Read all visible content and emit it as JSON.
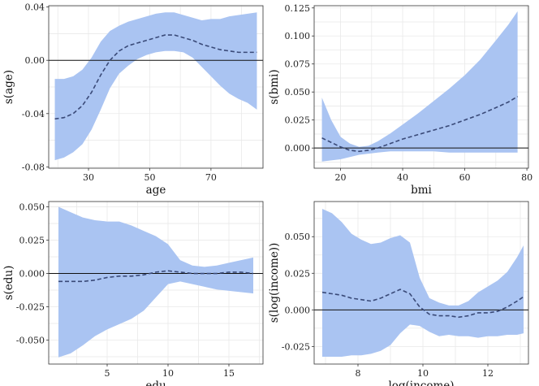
{
  "chart_data": [
    {
      "type": "area",
      "id": "age",
      "xlabel": "age",
      "ylabel": "s(age)",
      "xlim": [
        17,
        87
      ],
      "ylim": [
        -0.081,
        0.041
      ],
      "xticks": [
        30,
        50,
        70
      ],
      "xtick_labels": [
        "30",
        "50",
        "70"
      ],
      "yticks": [
        -0.08,
        -0.04,
        0.0,
        0.04
      ],
      "ytick_labels": [
        "-0.08",
        "-0.04",
        "0.00",
        "0.04"
      ],
      "x": [
        19,
        22,
        25,
        28,
        31,
        34,
        37,
        40,
        43,
        46,
        49,
        52,
        55,
        58,
        61,
        64,
        67,
        70,
        73,
        76,
        79,
        82,
        85
      ],
      "estimate": [
        -0.044,
        -0.043,
        -0.04,
        -0.034,
        -0.024,
        -0.011,
        0.0,
        0.007,
        0.011,
        0.013,
        0.015,
        0.017,
        0.019,
        0.019,
        0.017,
        0.015,
        0.012,
        0.01,
        0.008,
        0.007,
        0.006,
        0.006,
        0.006
      ],
      "lower": [
        -0.075,
        -0.073,
        -0.069,
        -0.063,
        -0.052,
        -0.037,
        -0.021,
        -0.01,
        -0.004,
        0.001,
        0.004,
        0.006,
        0.007,
        0.007,
        0.006,
        0.002,
        -0.005,
        -0.012,
        -0.019,
        -0.025,
        -0.029,
        -0.032,
        -0.037
      ],
      "upper": [
        -0.014,
        -0.014,
        -0.012,
        -0.007,
        0.002,
        0.014,
        0.022,
        0.026,
        0.029,
        0.031,
        0.033,
        0.035,
        0.036,
        0.036,
        0.034,
        0.032,
        0.03,
        0.031,
        0.031,
        0.033,
        0.034,
        0.035,
        0.036
      ]
    },
    {
      "type": "area",
      "id": "bmi",
      "xlabel": "bmi",
      "ylabel": "s(bmi)",
      "xlim": [
        11.5,
        80.5
      ],
      "ylim": [
        -0.018,
        0.127
      ],
      "xticks": [
        20,
        40,
        60,
        80
      ],
      "xtick_labels": [
        "20",
        "40",
        "60",
        "80"
      ],
      "yticks": [
        0.0,
        0.025,
        0.05,
        0.075,
        0.1,
        0.125
      ],
      "ytick_labels": [
        "0.000",
        "0.025",
        "0.050",
        "0.075",
        "0.100",
        "0.125"
      ],
      "x": [
        14,
        17,
        20,
        23,
        26,
        29,
        32,
        36,
        40,
        45,
        50,
        55,
        60,
        65,
        70,
        74,
        77
      ],
      "estimate": [
        0.009,
        0.005,
        0.001,
        -0.002,
        -0.003,
        -0.002,
        0.0,
        0.004,
        0.008,
        0.012,
        0.016,
        0.02,
        0.025,
        0.03,
        0.036,
        0.041,
        0.046
      ],
      "lower": [
        -0.012,
        -0.011,
        -0.01,
        -0.008,
        -0.006,
        -0.005,
        -0.004,
        -0.003,
        -0.003,
        -0.003,
        -0.003,
        -0.004,
        -0.004,
        -0.004,
        -0.004,
        -0.004,
        -0.004
      ],
      "upper": [
        0.045,
        0.025,
        0.01,
        0.004,
        0.001,
        0.002,
        0.006,
        0.013,
        0.021,
        0.031,
        0.042,
        0.053,
        0.065,
        0.079,
        0.096,
        0.11,
        0.122
      ]
    },
    {
      "type": "area",
      "id": "edu",
      "xlabel": "edu",
      "ylabel": "s(edu)",
      "xlim": [
        0.2,
        17.8
      ],
      "ylim": [
        -0.068,
        0.054
      ],
      "xticks": [
        5,
        10,
        15
      ],
      "xtick_labels": [
        "5",
        "10",
        "15"
      ],
      "yticks": [
        -0.05,
        -0.025,
        0.0,
        0.025,
        0.05
      ],
      "ytick_labels": [
        "-0.050",
        "-0.025",
        "0.000",
        "0.025",
        "0.050"
      ],
      "x": [
        1,
        2,
        3,
        4,
        5,
        6,
        7,
        8,
        9,
        10,
        11,
        12,
        13,
        14,
        15,
        16,
        17
      ],
      "estimate": [
        -0.006,
        -0.006,
        -0.006,
        -0.005,
        -0.003,
        -0.002,
        -0.002,
        -0.001,
        0.001,
        0.002,
        0.001,
        0.0,
        0.0,
        0.0,
        0.001,
        0.001,
        0.0
      ],
      "lower": [
        -0.063,
        -0.06,
        -0.054,
        -0.047,
        -0.042,
        -0.038,
        -0.034,
        -0.028,
        -0.018,
        -0.008,
        -0.006,
        -0.008,
        -0.01,
        -0.012,
        -0.013,
        -0.014,
        -0.015
      ],
      "upper": [
        0.05,
        0.046,
        0.042,
        0.04,
        0.039,
        0.039,
        0.036,
        0.032,
        0.028,
        0.022,
        0.01,
        0.006,
        0.005,
        0.006,
        0.008,
        0.01,
        0.012
      ]
    },
    {
      "type": "area",
      "id": "income",
      "xlabel": "log(income)",
      "ylabel": "s(log(income))",
      "xlim": [
        6.65,
        13.25
      ],
      "ylim": [
        -0.037,
        0.074
      ],
      "xticks": [
        8,
        10,
        12
      ],
      "xtick_labels": [
        "8",
        "10",
        "12"
      ],
      "yticks": [
        -0.025,
        0.0,
        0.025,
        0.05
      ],
      "ytick_labels": [
        "-0.025",
        "0.000",
        "0.025",
        "0.050"
      ],
      "x": [
        6.9,
        7.2,
        7.5,
        7.8,
        8.1,
        8.4,
        8.7,
        9.0,
        9.3,
        9.6,
        9.9,
        10.2,
        10.5,
        10.8,
        11.1,
        11.4,
        11.7,
        12.0,
        12.3,
        12.6,
        12.9,
        13.1
      ],
      "estimate": [
        0.012,
        0.011,
        0.01,
        0.008,
        0.007,
        0.006,
        0.008,
        0.011,
        0.014,
        0.011,
        0.002,
        -0.003,
        -0.004,
        -0.004,
        -0.005,
        -0.004,
        -0.002,
        -0.002,
        -0.001,
        0.002,
        0.006,
        0.009
      ],
      "lower": [
        -0.032,
        -0.032,
        -0.032,
        -0.031,
        -0.031,
        -0.03,
        -0.028,
        -0.024,
        -0.016,
        -0.01,
        -0.011,
        -0.015,
        -0.018,
        -0.017,
        -0.018,
        -0.018,
        -0.019,
        -0.018,
        -0.018,
        -0.017,
        -0.017,
        -0.016
      ],
      "upper": [
        0.069,
        0.066,
        0.06,
        0.052,
        0.048,
        0.045,
        0.046,
        0.049,
        0.051,
        0.046,
        0.022,
        0.008,
        0.005,
        0.003,
        0.003,
        0.006,
        0.012,
        0.016,
        0.02,
        0.026,
        0.036,
        0.044
      ]
    }
  ]
}
